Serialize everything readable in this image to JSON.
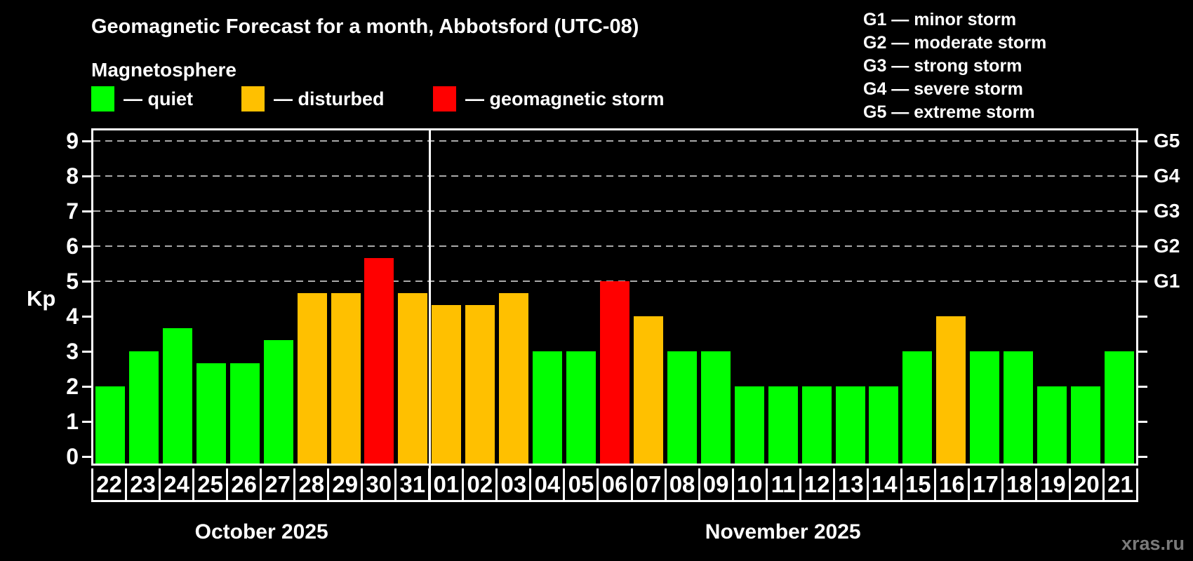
{
  "title": "Geomagnetic Forecast for a month, Abbotsford (UTC-08)",
  "subtitle": "Magnetosphere",
  "legend": {
    "items": [
      {
        "key": "quiet",
        "label": "— quiet",
        "color": "#00ff00"
      },
      {
        "key": "disturbed",
        "label": "— disturbed",
        "color": "#ffc000"
      },
      {
        "key": "storm",
        "label": "— geomagnetic storm",
        "color": "#ff0000"
      }
    ]
  },
  "g_legend": [
    "G1 — minor storm",
    "G2 — moderate storm",
    "G3 — strong storm",
    "G4 — severe storm",
    "G5 — extreme storm"
  ],
  "axes": {
    "y_label": "Kp",
    "y_ticks": [
      0,
      1,
      2,
      3,
      4,
      5,
      6,
      7,
      8,
      9
    ],
    "right_scale": [
      {
        "label": "G1",
        "kp": 5
      },
      {
        "label": "G2",
        "kp": 6
      },
      {
        "label": "G3",
        "kp": 7
      },
      {
        "label": "G4",
        "kp": 8
      },
      {
        "label": "G5",
        "kp": 9
      }
    ],
    "grid_kp": [
      5,
      6,
      7,
      8,
      9
    ]
  },
  "months": [
    {
      "name": "October 2025",
      "days": 10
    },
    {
      "name": "November 2025",
      "days": 21
    }
  ],
  "watermark": "xras.ru",
  "chart_data": {
    "type": "bar",
    "title": "Geomagnetic Forecast for a month, Abbotsford (UTC-08)",
    "ylabel": "Kp",
    "ylim": [
      0,
      9
    ],
    "grid": "dashed horizontal lines at Kp 5,6,7,8,9 (G1–G5 levels)",
    "legend_position": "top",
    "categories": [
      "22",
      "23",
      "24",
      "25",
      "26",
      "27",
      "28",
      "29",
      "30",
      "31",
      "01",
      "02",
      "03",
      "04",
      "05",
      "06",
      "07",
      "08",
      "09",
      "10",
      "11",
      "12",
      "13",
      "14",
      "15",
      "16",
      "17",
      "18",
      "19",
      "20",
      "21"
    ],
    "values": [
      2.0,
      3.0,
      3.67,
      2.67,
      2.67,
      3.33,
      4.67,
      4.67,
      5.67,
      4.67,
      4.33,
      4.33,
      4.67,
      3.0,
      3.0,
      5.0,
      4.0,
      3.0,
      3.0,
      2.0,
      2.0,
      2.0,
      2.0,
      2.0,
      3.0,
      4.0,
      3.0,
      3.0,
      2.0,
      2.0,
      3.0
    ],
    "statuses": [
      "quiet",
      "quiet",
      "quiet",
      "quiet",
      "quiet",
      "quiet",
      "disturbed",
      "disturbed",
      "storm",
      "disturbed",
      "disturbed",
      "disturbed",
      "disturbed",
      "quiet",
      "quiet",
      "storm",
      "disturbed",
      "quiet",
      "quiet",
      "quiet",
      "quiet",
      "quiet",
      "quiet",
      "quiet",
      "quiet",
      "disturbed",
      "quiet",
      "quiet",
      "quiet",
      "quiet",
      "quiet"
    ]
  }
}
